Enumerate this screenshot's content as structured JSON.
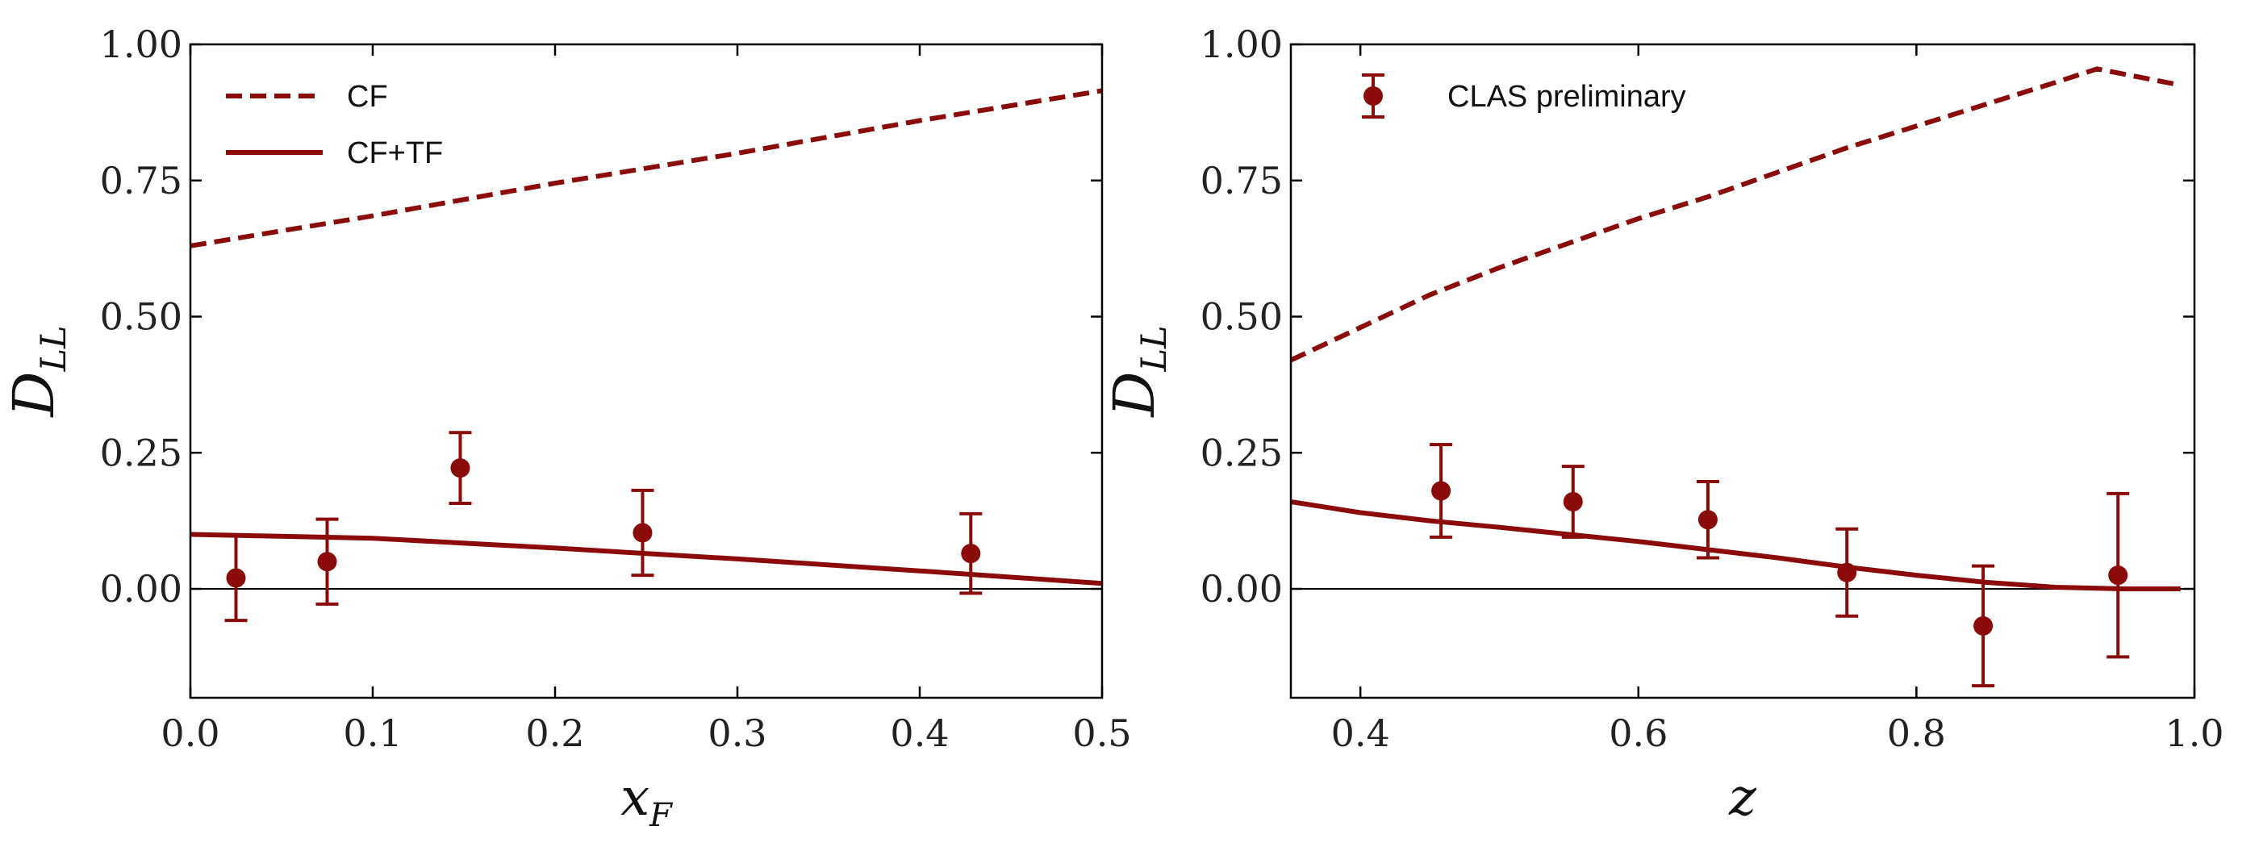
{
  "colors": {
    "series": "#8b0a0a",
    "zero_line": "#000000",
    "frame": "#000000"
  },
  "chart_data": [
    {
      "type": "line",
      "xlabel": "x_F",
      "ylabel": "D_LL",
      "xlim": [
        0.0,
        0.5
      ],
      "ylim": [
        -0.2,
        1.0
      ],
      "xticks": [
        "0.0",
        "0.1",
        "0.2",
        "0.3",
        "0.4",
        "0.5"
      ],
      "yticks": [
        "0.00",
        "0.25",
        "0.50",
        "0.75",
        "1.00"
      ],
      "grid": false,
      "legend": {
        "placement": "top-left",
        "entries": [
          {
            "label": "CF",
            "style": "dashed"
          },
          {
            "label": "CF+TF",
            "style": "solid"
          }
        ]
      },
      "series": [
        {
          "name": "CF",
          "style": "dashed",
          "x": [
            0.0,
            0.1,
            0.2,
            0.3,
            0.4,
            0.5
          ],
          "y": [
            0.63,
            0.685,
            0.745,
            0.8,
            0.86,
            0.915
          ]
        },
        {
          "name": "CF+TF",
          "style": "solid",
          "x": [
            0.0,
            0.1,
            0.2,
            0.3,
            0.4,
            0.5
          ],
          "y": [
            0.1,
            0.093,
            0.075,
            0.055,
            0.033,
            0.01
          ]
        }
      ],
      "points": [
        {
          "x": 0.025,
          "y": 0.02,
          "err": 0.078
        },
        {
          "x": 0.075,
          "y": 0.05,
          "err": 0.078
        },
        {
          "x": 0.148,
          "y": 0.222,
          "err": 0.065
        },
        {
          "x": 0.248,
          "y": 0.103,
          "err": 0.078
        },
        {
          "x": 0.428,
          "y": 0.065,
          "err": 0.073
        }
      ]
    },
    {
      "type": "line",
      "xlabel": "z",
      "ylabel": "D_LL",
      "xlim": [
        0.35,
        1.0
      ],
      "ylim": [
        -0.2,
        1.0
      ],
      "xticks": [
        "0.4",
        "0.6",
        "0.8",
        "1.0"
      ],
      "yticks": [
        "0.00",
        "0.25",
        "0.50",
        "0.75",
        "1.00"
      ],
      "grid": false,
      "legend": {
        "placement": "top-left",
        "entries": [
          {
            "label": "CLAS preliminary",
            "style": "errorbar-marker"
          }
        ]
      },
      "series": [
        {
          "style": "dashed",
          "x": [
            0.35,
            0.4,
            0.45,
            0.5,
            0.55,
            0.6,
            0.65,
            0.7,
            0.75,
            0.8,
            0.85,
            0.9,
            0.93,
            0.96,
            0.99
          ],
          "y": [
            0.42,
            0.48,
            0.54,
            0.59,
            0.635,
            0.68,
            0.72,
            0.765,
            0.81,
            0.85,
            0.89,
            0.93,
            0.955,
            0.94,
            0.925
          ]
        },
        {
          "style": "solid",
          "x": [
            0.35,
            0.4,
            0.45,
            0.5,
            0.55,
            0.6,
            0.65,
            0.7,
            0.75,
            0.8,
            0.85,
            0.9,
            0.95,
            0.99
          ],
          "y": [
            0.16,
            0.14,
            0.125,
            0.113,
            0.1,
            0.087,
            0.072,
            0.057,
            0.04,
            0.025,
            0.012,
            0.003,
            0.0,
            0.0
          ]
        }
      ],
      "points": [
        {
          "x": 0.458,
          "y": 0.18,
          "err": 0.085,
          "name": "CLAS preliminary"
        },
        {
          "x": 0.553,
          "y": 0.16,
          "err": 0.065
        },
        {
          "x": 0.65,
          "y": 0.127,
          "err": 0.07
        },
        {
          "x": 0.75,
          "y": 0.03,
          "err": 0.08
        },
        {
          "x": 0.848,
          "y": -0.068,
          "err": 0.11
        },
        {
          "x": 0.945,
          "y": 0.025,
          "err": 0.15
        }
      ]
    }
  ]
}
